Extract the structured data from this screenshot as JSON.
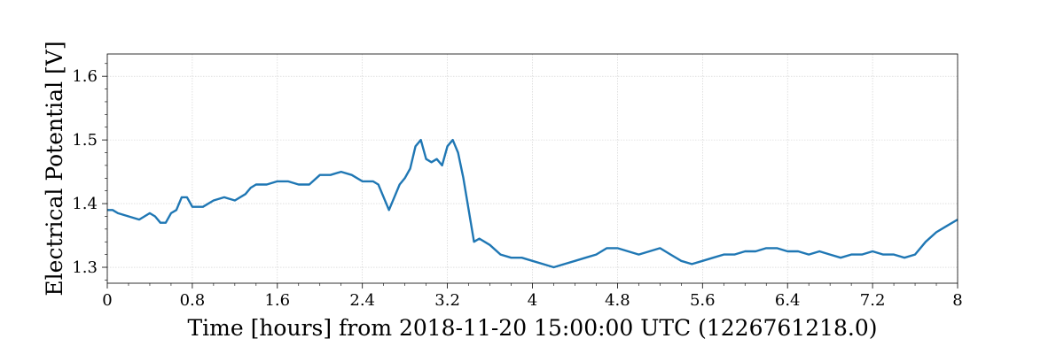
{
  "chart_data": {
    "type": "line",
    "title": "",
    "xlabel": "Time [hours] from 2018-11-20 15:00:00 UTC (1226761218.0)",
    "ylabel": "Electrical Potential [V]",
    "xlim": [
      0,
      8
    ],
    "ylim": [
      1.275,
      1.635
    ],
    "xticks": [
      0,
      0.8,
      1.6,
      2.4,
      3.2,
      4,
      4.8,
      5.6,
      6.4,
      7.2,
      8
    ],
    "xtick_labels": [
      "0",
      "0.8",
      "1.6",
      "2.4",
      "3.2",
      "4",
      "4.8",
      "5.6",
      "6.4",
      "7.2",
      "8"
    ],
    "yticks": [
      1.3,
      1.4,
      1.5,
      1.6
    ],
    "ytick_labels": [
      "1.3",
      "1.4",
      "1.5",
      "1.6"
    ],
    "grid": true,
    "series_color": "#1f77b4",
    "series": [
      {
        "x": [
          0,
          0.05,
          0.1,
          0.2,
          0.3,
          0.4,
          0.45,
          0.5,
          0.55,
          0.6,
          0.65,
          0.7,
          0.75,
          0.8,
          0.9,
          1.0,
          1.1,
          1.2,
          1.3,
          1.35,
          1.4,
          1.5,
          1.6,
          1.7,
          1.8,
          1.9,
          2.0,
          2.1,
          2.2,
          2.3,
          2.4,
          2.5,
          2.55,
          2.6,
          2.65,
          2.7,
          2.75,
          2.8,
          2.85,
          2.9,
          2.95,
          3.0,
          3.05,
          3.1,
          3.15,
          3.2,
          3.25,
          3.3,
          3.35,
          3.4,
          3.45,
          3.5,
          3.6,
          3.7,
          3.8,
          3.9,
          4.0,
          4.1,
          4.2,
          4.3,
          4.4,
          4.5,
          4.6,
          4.7,
          4.8,
          4.9,
          5.0,
          5.1,
          5.2,
          5.3,
          5.4,
          5.5,
          5.6,
          5.7,
          5.8,
          5.9,
          6.0,
          6.1,
          6.2,
          6.3,
          6.4,
          6.5,
          6.6,
          6.7,
          6.8,
          6.9,
          7.0,
          7.1,
          7.2,
          7.3,
          7.4,
          7.5,
          7.6,
          7.7,
          7.8,
          7.9,
          8.0
        ],
        "y": [
          1.39,
          1.39,
          1.385,
          1.38,
          1.375,
          1.385,
          1.38,
          1.37,
          1.37,
          1.385,
          1.39,
          1.41,
          1.41,
          1.395,
          1.395,
          1.405,
          1.41,
          1.405,
          1.415,
          1.425,
          1.43,
          1.43,
          1.435,
          1.435,
          1.43,
          1.43,
          1.445,
          1.445,
          1.45,
          1.445,
          1.435,
          1.435,
          1.43,
          1.41,
          1.39,
          1.41,
          1.43,
          1.44,
          1.455,
          1.49,
          1.5,
          1.47,
          1.465,
          1.47,
          1.46,
          1.49,
          1.5,
          1.48,
          1.44,
          1.39,
          1.34,
          1.345,
          1.335,
          1.32,
          1.315,
          1.315,
          1.31,
          1.305,
          1.3,
          1.305,
          1.31,
          1.315,
          1.32,
          1.33,
          1.33,
          1.325,
          1.32,
          1.325,
          1.33,
          1.32,
          1.31,
          1.305,
          1.31,
          1.315,
          1.32,
          1.32,
          1.325,
          1.325,
          1.33,
          1.33,
          1.325,
          1.325,
          1.32,
          1.325,
          1.32,
          1.315,
          1.32,
          1.32,
          1.325,
          1.32,
          1.32,
          1.315,
          1.32,
          1.34,
          1.355,
          1.365,
          1.375
        ]
      }
    ]
  }
}
